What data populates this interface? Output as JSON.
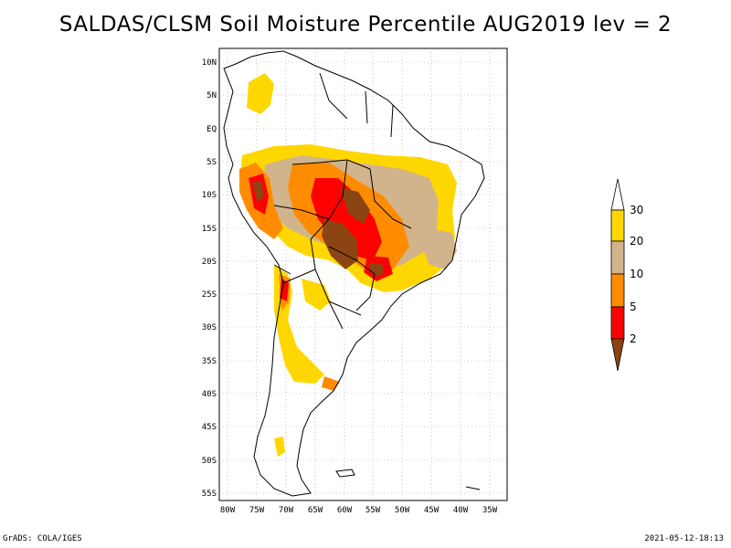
{
  "title": "SALDAS/CLSM Soil Moisture Percentile AUG2019 lev = 2",
  "footer": {
    "left": "GrADS: COLA/IGES",
    "right": "2021-05-12-18:13"
  },
  "map": {
    "lon_range": [
      -81,
      -32
    ],
    "lat_range": [
      -56,
      12
    ],
    "lat_ticks": [
      "10N",
      "5N",
      "EQ",
      "5S",
      "10S",
      "15S",
      "20S",
      "25S",
      "30S",
      "35S",
      "40S",
      "45S",
      "50S",
      "55S"
    ],
    "lon_ticks": [
      "80W",
      "75W",
      "70W",
      "65W",
      "60W",
      "55W",
      "50W",
      "45W",
      "40W",
      "35W"
    ],
    "grid": "dotted"
  },
  "colorbar": {
    "labels": [
      "2",
      "5",
      "10",
      "20",
      "30"
    ],
    "colors": [
      "#8B4513",
      "#FF0000",
      "#FF8C00",
      "#D2B48C",
      "#FFD700",
      "#FFFFFF"
    ]
  }
}
